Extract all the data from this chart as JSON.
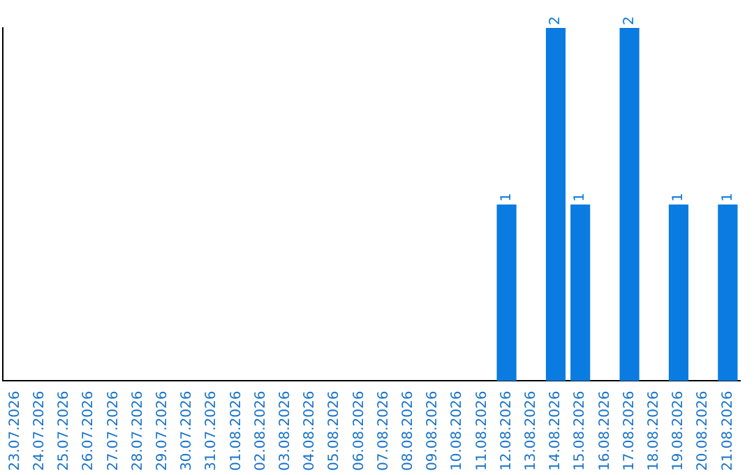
{
  "chart_data": {
    "type": "bar",
    "categories": [
      "23.07.2026",
      "24.07.2026",
      "25.07.2026",
      "26.07.2026",
      "27.07.2026",
      "28.07.2026",
      "29.07.2026",
      "30.07.2026",
      "31.07.2026",
      "01.08.2026",
      "02.08.2026",
      "03.08.2026",
      "04.08.2026",
      "05.08.2026",
      "06.08.2026",
      "07.08.2026",
      "08.08.2026",
      "09.08.2026",
      "10.08.2026",
      "11.08.2026",
      "12.08.2026",
      "13.08.2026",
      "14.08.2026",
      "15.08.2026",
      "16.08.2026",
      "17.08.2026",
      "18.08.2026",
      "19.08.2026",
      "20.08.2026",
      "21.08.2026"
    ],
    "values": [
      null,
      null,
      null,
      null,
      null,
      null,
      null,
      null,
      null,
      null,
      null,
      null,
      null,
      null,
      null,
      null,
      null,
      null,
      null,
      null,
      1,
      null,
      2,
      1,
      null,
      2,
      null,
      1,
      null,
      1
    ],
    "color": "#0a7be0",
    "ylim": [
      0,
      2
    ],
    "grid": false,
    "legend": false,
    "tick_labels": "x",
    "data_labels": true
  }
}
